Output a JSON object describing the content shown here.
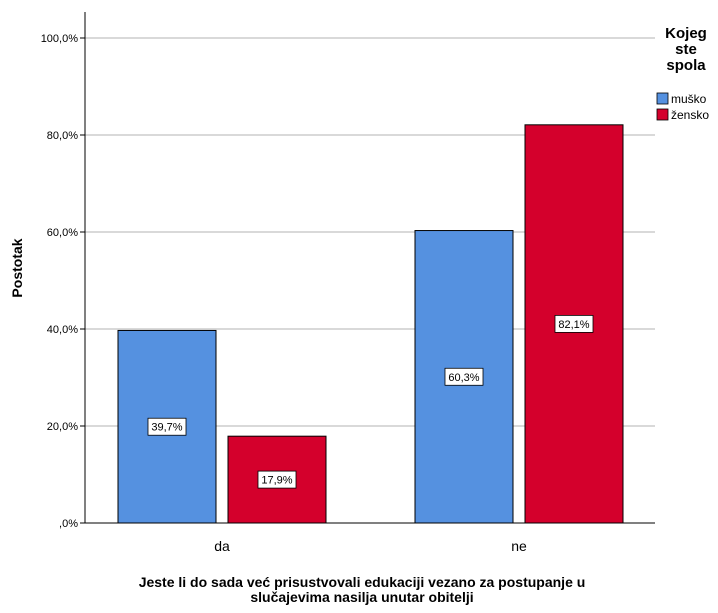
{
  "chart_data": {
    "type": "bar",
    "categories": [
      "da",
      "ne"
    ],
    "series": [
      {
        "name": "muško",
        "color": "#5591e0",
        "values": [
          39.7,
          60.3
        ],
        "labels": [
          "39,7%",
          "60,3%"
        ]
      },
      {
        "name": "žensko",
        "color": "#d4002c",
        "values": [
          17.9,
          82.1
        ],
        "labels": [
          "17,9%",
          "82,1%"
        ]
      }
    ],
    "ylabel": "Postotak",
    "xlabel_lines": [
      "Jeste li do sada već prisustvovali edukaciji vezano za postupanje u",
      "slučajevima nasilja unutar obitelji"
    ],
    "legend_title_lines": [
      "Kojeg",
      "ste",
      "spola"
    ],
    "legend_position": "right",
    "ylim": [
      0,
      100
    ],
    "yticks": [
      0,
      20,
      40,
      60,
      80,
      100
    ],
    "ytick_labels": [
      ",0%",
      "20,0%",
      "40,0%",
      "60,0%",
      "80,0%",
      "100,0%"
    ],
    "grid": true
  }
}
